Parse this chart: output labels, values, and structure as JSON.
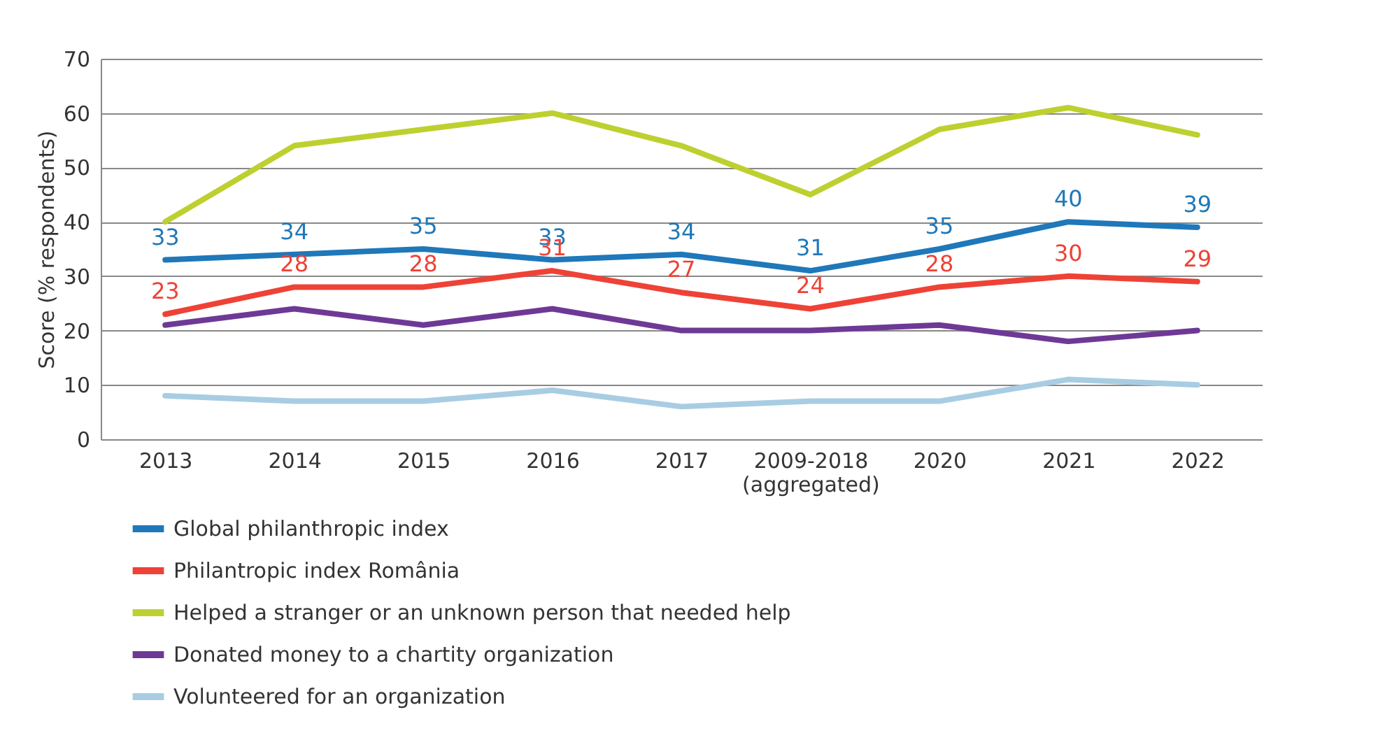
{
  "chart_data": {
    "type": "line",
    "ylabel": "Score (% respondents)",
    "categories": [
      "2013",
      "2014",
      "2015",
      "2016",
      "2017",
      "2009-2018\n(aggregated)",
      "2020",
      "2021",
      "2022"
    ],
    "ylim": [
      0,
      70
    ],
    "yticks": [
      0,
      10,
      20,
      30,
      40,
      50,
      60,
      70
    ],
    "grid": "y",
    "legend": "bottom",
    "line_style": "solid",
    "marker": "none",
    "series": [
      {
        "name": "Global philanthropic index",
        "color": "#1f78b9",
        "values": [
          33,
          34,
          35,
          33,
          34,
          31,
          35,
          40,
          39
        ],
        "value_labels": [
          "33",
          "34",
          "35",
          "33",
          "34",
          "31",
          "35",
          "40",
          "39"
        ]
      },
      {
        "name": "Philantropic index România",
        "color": "#ee4236",
        "values": [
          23,
          28,
          28,
          31,
          27,
          24,
          28,
          30,
          29
        ],
        "value_labels": [
          "23",
          "28",
          "28",
          "31",
          "27",
          "24",
          "28",
          "30",
          "29"
        ]
      },
      {
        "name": "Helped a stranger or an unknown person that needed help",
        "color": "#bdd030",
        "values": [
          40,
          54,
          57,
          60,
          54,
          45,
          57,
          61,
          56
        ]
      },
      {
        "name": "Donated money to a chartity organization",
        "color": "#6e3996",
        "values": [
          21,
          24,
          21,
          24,
          20,
          20,
          21,
          18,
          20
        ]
      },
      {
        "name": "Volunteered for an organization",
        "color": "#a8cde3",
        "values": [
          8,
          7,
          7,
          9,
          6,
          7,
          7,
          11,
          10
        ]
      }
    ]
  }
}
